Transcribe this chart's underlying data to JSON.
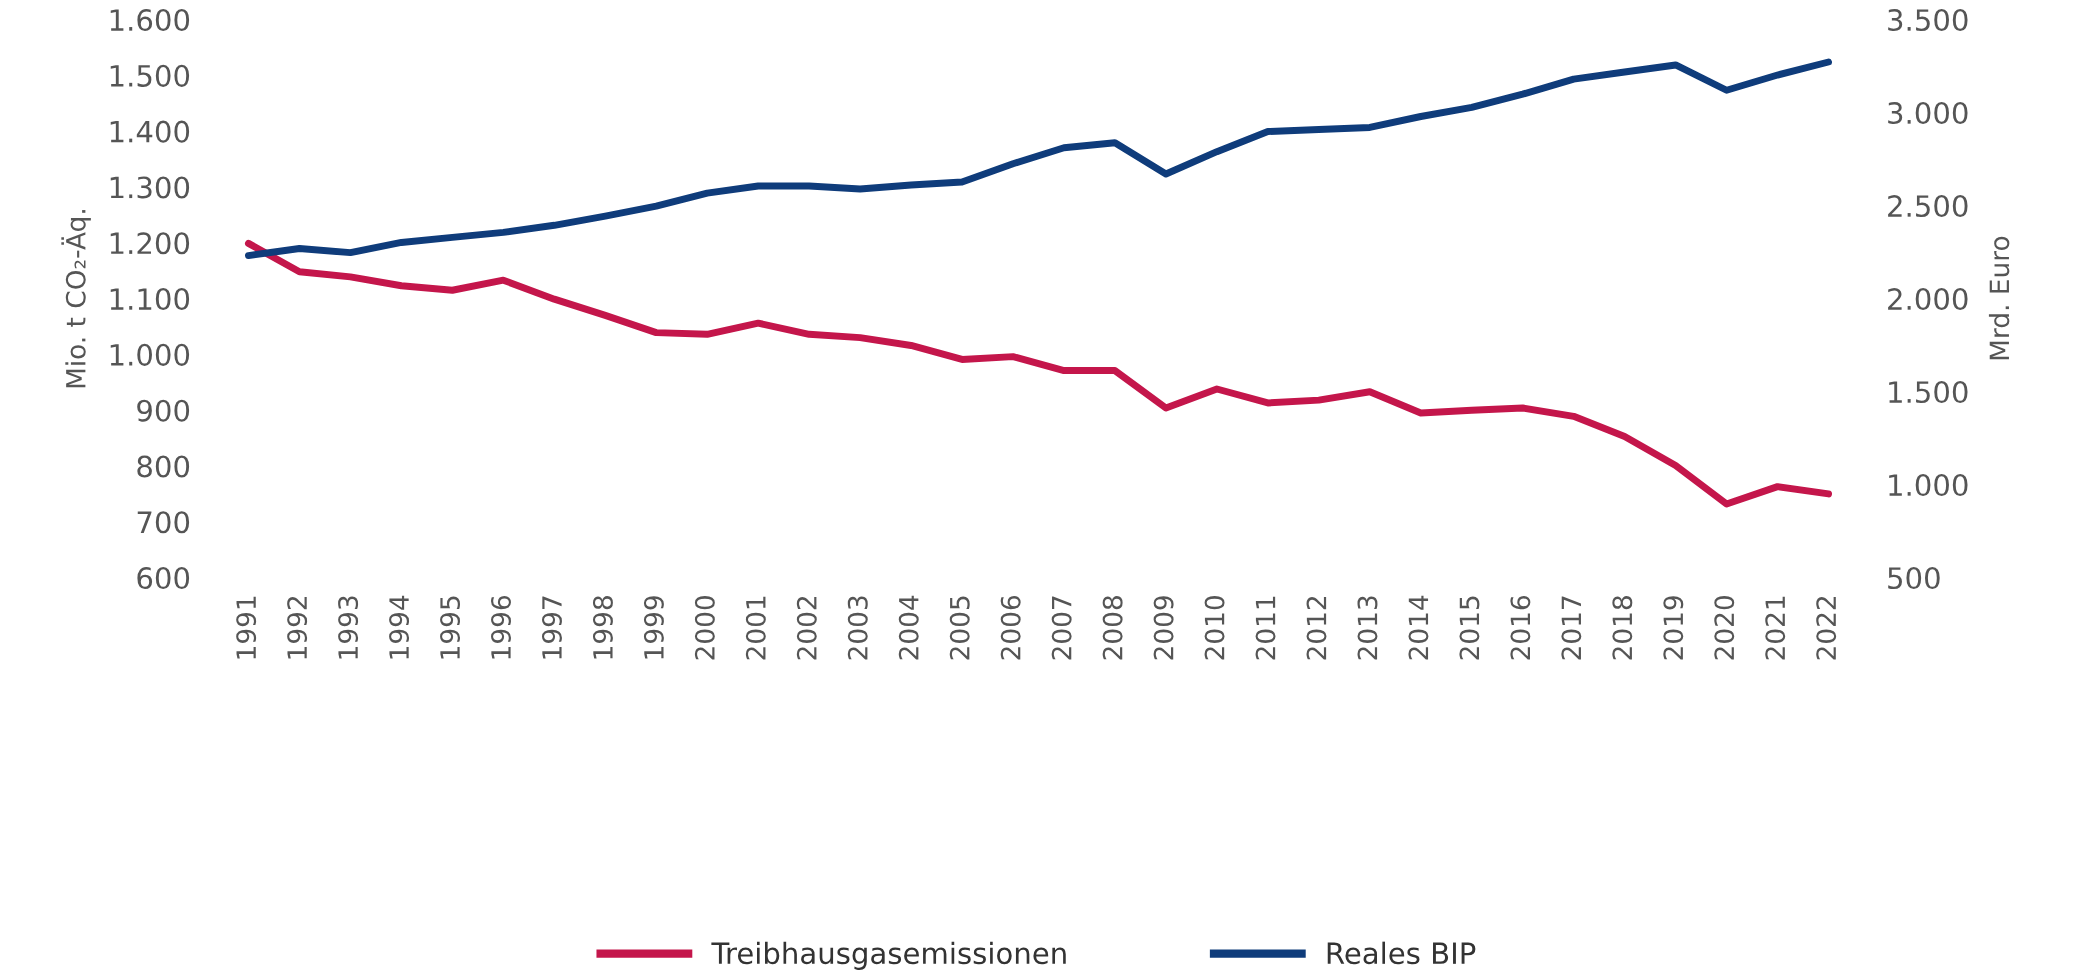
{
  "chart_data": {
    "type": "line",
    "ylabel": "Mio. t CO₂-Äq.",
    "y2label": "Mrd. Euro",
    "categories": [
      "1991",
      "1992",
      "1993",
      "1994",
      "1995",
      "1996",
      "1997",
      "1998",
      "1999",
      "2000",
      "2001",
      "2002",
      "2003",
      "2004",
      "2005",
      "2006",
      "2007",
      "2008",
      "2009",
      "2010",
      "2011",
      "2012",
      "2013",
      "2014",
      "2015",
      "2016",
      "2017",
      "2018",
      "2019",
      "2020",
      "2021",
      "2022"
    ],
    "series": [
      {
        "name": "Treibhausgasemissionen",
        "color": "#c4164b",
        "values": [
          1199,
          1148,
          1139,
          1123,
          1115,
          1133,
          1099,
          1070,
          1039,
          1036,
          1056,
          1036,
          1030,
          1016,
          991,
          996,
          971,
          971,
          904,
          938,
          913,
          918,
          933,
          895,
          900,
          904,
          889,
          853,
          801,
          732,
          763,
          750
        ]
      },
      {
        "name": "Reales BIP",
        "color": "#0f3c7b",
        "axis": "y2",
        "values": [
          2231,
          2269,
          2247,
          2302,
          2329,
          2356,
          2394,
          2443,
          2497,
          2567,
          2605,
          2605,
          2589,
          2611,
          2627,
          2725,
          2811,
          2838,
          2670,
          2790,
          2898,
          2909,
          2920,
          2979,
          3028,
          3099,
          3180,
          3218,
          3256,
          3120,
          3202,
          3272
        ]
      }
    ],
    "ylim": [
      600,
      1600
    ],
    "yticks": [
      600,
      700,
      800,
      900,
      {
        "value": 1000,
        "label": "1.000"
      },
      {
        "value": 1100,
        "label": "1.100"
      },
      {
        "value": 1200,
        "label": "1.200"
      },
      {
        "value": 1300,
        "label": "1.300"
      },
      {
        "value": 1400,
        "label": "1.400"
      },
      {
        "value": 1500,
        "label": "1.500"
      },
      {
        "value": 1600,
        "label": "1.600"
      }
    ],
    "y2lim": [
      500,
      3500
    ],
    "y2ticks": [
      500,
      {
        "value": 1000,
        "label": "1.000"
      },
      {
        "value": 1500,
        "label": "1.500"
      },
      {
        "value": 2000,
        "label": "2.000"
      },
      {
        "value": 2500,
        "label": "2.500"
      },
      {
        "value": 3000,
        "label": "3.000"
      },
      {
        "value": 3500,
        "label": "3.500"
      }
    ],
    "grid": false,
    "legend": "bottom",
    "marker": "none",
    "line_style": "solid"
  }
}
